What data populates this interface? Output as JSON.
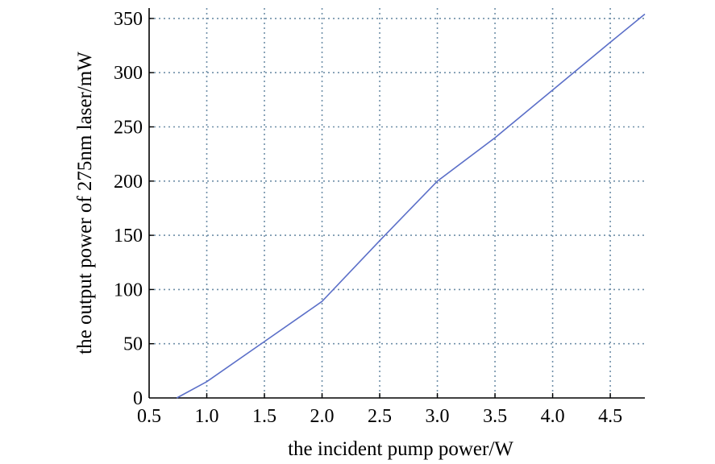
{
  "chart_data": {
    "type": "line",
    "title": "",
    "xlabel": "the incident pump power/W",
    "ylabel": "the output power of 275nm laser/mW",
    "xlim": [
      0.5,
      4.8
    ],
    "ylim": [
      0,
      355
    ],
    "xticks": [
      "0.5",
      "1.0",
      "1.5",
      "2.0",
      "2.5",
      "3.0",
      "3.5",
      "4.0",
      "4.5"
    ],
    "yticks": [
      "0",
      "50",
      "100",
      "150",
      "200",
      "250",
      "300",
      "350"
    ],
    "grid": true,
    "series": [
      {
        "color": "#5b6fc8",
        "x": [
          0.74,
          1.0,
          1.5,
          2.0,
          2.5,
          3.0,
          3.5,
          4.0,
          4.5,
          4.8
        ],
        "y": [
          0,
          15,
          52,
          89,
          145,
          200,
          240,
          284,
          328,
          354
        ]
      }
    ]
  }
}
